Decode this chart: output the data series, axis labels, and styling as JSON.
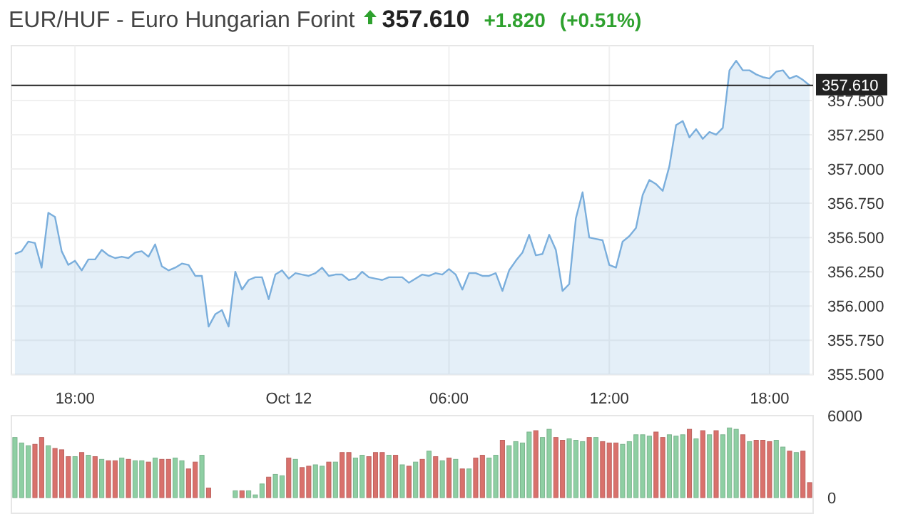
{
  "chart_data": [
    {
      "type": "area",
      "title": "EUR/HUF - Euro Hungarian Forint",
      "annotations": [
        "357.610",
        "+1.820",
        "(+0.51%)"
      ],
      "categories": [
        null,
        null,
        null,
        null,
        null,
        null,
        null,
        null,
        null,
        "18:00",
        null,
        null,
        null,
        null,
        null,
        null,
        null,
        null,
        null,
        null,
        null,
        null,
        null,
        null,
        null,
        null,
        null,
        null,
        null,
        null,
        null,
        null,
        null,
        null,
        null,
        null,
        null,
        null,
        null,
        null,
        null,
        "Oct 12",
        null,
        null,
        null,
        null,
        null,
        null,
        null,
        null,
        null,
        null,
        null,
        null,
        null,
        null,
        null,
        null,
        null,
        null,
        null,
        null,
        null,
        null,
        null,
        "06:00",
        null,
        null,
        null,
        null,
        null,
        null,
        null,
        null,
        null,
        null,
        null,
        null,
        null,
        null,
        null,
        null,
        null,
        null,
        null,
        null,
        null,
        null,
        null,
        "12:00",
        null,
        null,
        null,
        null,
        null,
        null,
        null,
        null,
        null,
        null,
        null,
        null,
        null,
        null,
        null,
        null,
        null,
        null,
        null,
        null,
        null,
        null,
        null,
        "18:00",
        null,
        null,
        null,
        null,
        null,
        null
      ],
      "series": [
        {
          "color": "#7aaedc",
          "values": [
            356.38,
            356.4,
            356.47,
            356.46,
            356.28,
            356.68,
            356.65,
            356.4,
            356.3,
            356.33,
            356.26,
            356.34,
            356.34,
            356.41,
            356.37,
            356.35,
            356.36,
            356.35,
            356.39,
            356.4,
            356.36,
            356.45,
            356.29,
            356.26,
            356.28,
            356.31,
            356.3,
            356.22,
            356.22,
            355.85,
            355.94,
            355.97,
            355.85,
            356.25,
            356.12,
            356.19,
            356.21,
            356.21,
            356.05,
            356.23,
            356.26,
            356.2,
            356.24,
            356.23,
            356.22,
            356.24,
            356.28,
            356.22,
            356.23,
            356.23,
            356.19,
            356.2,
            356.25,
            356.21,
            356.2,
            356.19,
            356.21,
            356.21,
            356.21,
            356.17,
            356.2,
            356.23,
            356.22,
            356.24,
            356.23,
            356.27,
            356.23,
            356.12,
            356.24,
            356.24,
            356.22,
            356.22,
            356.24,
            356.11,
            356.26,
            356.33,
            356.39,
            356.52,
            356.37,
            356.38,
            356.52,
            356.41,
            356.11,
            356.16,
            356.64,
            356.83,
            356.5,
            356.49,
            356.48,
            356.3,
            356.28,
            356.47,
            356.51,
            356.57,
            356.81,
            356.92,
            356.89,
            356.84,
            357.02,
            357.32,
            357.35,
            357.23,
            357.29,
            357.22,
            357.27,
            357.25,
            357.3,
            357.72,
            357.79,
            357.72,
            357.72,
            357.69,
            357.67,
            357.66,
            357.71,
            357.72,
            357.66,
            357.68,
            357.65,
            357.61
          ]
        }
      ],
      "ylim": [
        355.5,
        357.9
      ],
      "yticks": [
        {
          "value": 355.5,
          "label": "355.500"
        },
        {
          "value": 355.75,
          "label": "355.750"
        },
        {
          "value": 356,
          "label": "356.000"
        },
        {
          "value": 356.25,
          "label": "356.250"
        },
        {
          "value": 356.5,
          "label": "356.500"
        },
        {
          "value": 356.75,
          "label": "356.750"
        },
        {
          "value": 357,
          "label": "357.000"
        },
        {
          "value": 357.25,
          "label": "357.250"
        },
        {
          "value": 357.5,
          "label": "357.500"
        }
      ],
      "ref_lines": [
        {
          "axis": "y",
          "value": 357.61,
          "label": "357.610",
          "color": "#222222"
        }
      ],
      "grid": true
    },
    {
      "type": "bar",
      "tick_labels": "y",
      "categories": [
        null,
        null,
        null,
        null,
        null,
        null,
        null,
        null,
        null,
        null,
        null,
        null,
        null,
        null,
        null,
        null,
        null,
        null,
        null,
        null,
        null,
        null,
        null,
        null,
        null,
        null,
        null,
        null,
        null,
        null,
        null,
        null,
        null,
        null,
        null,
        null,
        null,
        null,
        null,
        null,
        null,
        null,
        null,
        null,
        null,
        null,
        null,
        null,
        null,
        null,
        null,
        null,
        null,
        null,
        null,
        null,
        null,
        null,
        null,
        null,
        null,
        null,
        null,
        null,
        null,
        null,
        null,
        null,
        null,
        null,
        null,
        null,
        null,
        null,
        null,
        null,
        null,
        null,
        null,
        null,
        null,
        null,
        null,
        null,
        null,
        null,
        null,
        null,
        null,
        null,
        null,
        null,
        null,
        null,
        null,
        null,
        null,
        null,
        null,
        null,
        null,
        null,
        null,
        null,
        null,
        null,
        null,
        null,
        null,
        null,
        null,
        null,
        null,
        null,
        null,
        null,
        null,
        null,
        null,
        null
      ],
      "values": [
        4400,
        4000,
        3800,
        3900,
        4400,
        3800,
        3600,
        3500,
        3000,
        3000,
        3300,
        3100,
        3000,
        2800,
        2700,
        2700,
        2900,
        2800,
        2700,
        2700,
        2600,
        2900,
        2800,
        2800,
        2900,
        2700,
        2100,
        2600,
        3100,
        700,
        null,
        null,
        null,
        500,
        500,
        500,
        200,
        1000,
        1500,
        1700,
        1600,
        2900,
        2800,
        2200,
        2300,
        2400,
        2300,
        2600,
        2600,
        3300,
        3300,
        2900,
        3100,
        3000,
        3300,
        3300,
        3100,
        3100,
        2400,
        2300,
        2600,
        2800,
        3400,
        3000,
        2700,
        2900,
        2800,
        2100,
        2100,
        2900,
        3100,
        2900,
        3100,
        4200,
        3800,
        4100,
        4000,
        4800,
        4900,
        4400,
        5000,
        4400,
        4200,
        4300,
        4200,
        4100,
        4400,
        4400,
        4100,
        4000,
        4000,
        3900,
        4100,
        4600,
        4600,
        4500,
        4800,
        4400,
        4600,
        4500,
        4600,
        5000,
        4300,
        4900,
        4600,
        4900,
        4600,
        5100,
        5000,
        4600,
        4100,
        4200,
        4200,
        4100,
        4200,
        3700,
        3400,
        3300,
        3400,
        1100
      ],
      "colors": [
        "#8ecfa3",
        "#8ecfa3",
        "#8ecfa3",
        "#d9716c",
        "#d9716c",
        "#8ecfa3",
        "#d9716c",
        "#d9716c",
        "#d9716c",
        "#8ecfa3",
        "#d9716c",
        "#8ecfa3",
        "#d9716c",
        "#8ecfa3",
        "#d9716c",
        "#d9716c",
        "#8ecfa3",
        "#d9716c",
        "#8ecfa3",
        "#8ecfa3",
        "#d9716c",
        "#8ecfa3",
        "#d9716c",
        "#d9716c",
        "#8ecfa3",
        "#8ecfa3",
        "#d9716c",
        "#d9716c",
        "#8ecfa3",
        "#d9716c",
        null,
        null,
        null,
        "#8ecfa3",
        "#d9716c",
        "#8ecfa3",
        "#8ecfa3",
        "#8ecfa3",
        "#d9716c",
        "#8ecfa3",
        "#8ecfa3",
        "#d9716c",
        "#8ecfa3",
        "#d9716c",
        "#d9716c",
        "#8ecfa3",
        "#8ecfa3",
        "#d9716c",
        "#8ecfa3",
        "#d9716c",
        "#d9716c",
        "#8ecfa3",
        "#8ecfa3",
        "#d9716c",
        "#d9716c",
        "#d9716c",
        "#8ecfa3",
        "#d9716c",
        "#8ecfa3",
        "#d9716c",
        "#8ecfa3",
        "#d9716c",
        "#8ecfa3",
        "#d9716c",
        "#8ecfa3",
        "#d9716c",
        "#8ecfa3",
        "#d9716c",
        "#8ecfa3",
        "#d9716c",
        "#d9716c",
        "#8ecfa3",
        "#8ecfa3",
        "#d9716c",
        "#8ecfa3",
        "#8ecfa3",
        "#8ecfa3",
        "#8ecfa3",
        "#d9716c",
        "#8ecfa3",
        "#8ecfa3",
        "#d9716c",
        "#d9716c",
        "#8ecfa3",
        "#8ecfa3",
        "#8ecfa3",
        "#d9716c",
        "#8ecfa3",
        "#d9716c",
        "#d9716c",
        "#d9716c",
        "#8ecfa3",
        "#8ecfa3",
        "#8ecfa3",
        "#8ecfa3",
        "#8ecfa3",
        "#d9716c",
        "#d9716c",
        "#8ecfa3",
        "#8ecfa3",
        "#8ecfa3",
        "#d9716c",
        "#8ecfa3",
        "#d9716c",
        "#8ecfa3",
        "#d9716c",
        "#8ecfa3",
        "#8ecfa3",
        "#8ecfa3",
        "#d9716c",
        "#8ecfa3",
        "#d9716c",
        "#d9716c",
        "#d9716c",
        "#8ecfa3",
        "#8ecfa3",
        "#d9716c",
        "#8ecfa3",
        "#d9716c",
        "#d9716c"
      ],
      "ylim": [
        0,
        6000
      ],
      "yticks": [
        0,
        6000
      ]
    }
  ]
}
